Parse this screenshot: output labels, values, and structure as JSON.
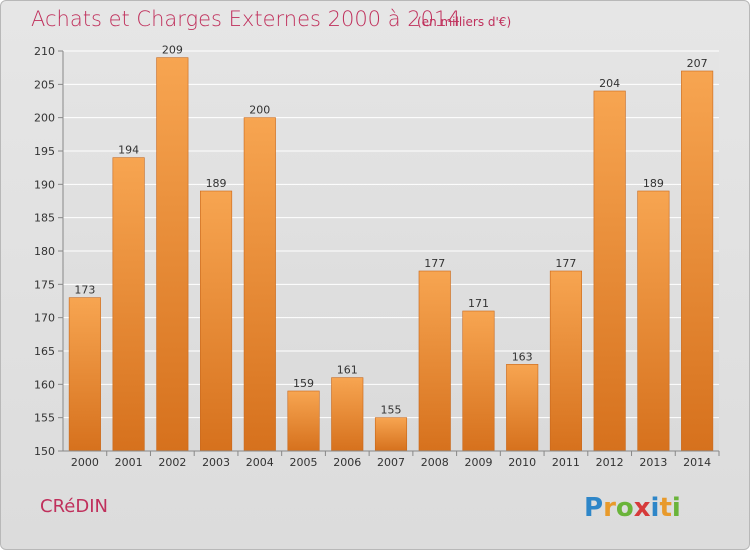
{
  "header": {
    "title": "Achats et Charges Externes 2000 à 2014",
    "subtitle": "(en milliers d'€)"
  },
  "footer": {
    "commune": "CRéDIN",
    "logo_text": "Proxiti"
  },
  "colors": {
    "accent": "#c0305c",
    "bar_light": "#f6a24e",
    "bar_dark": "#d8731f",
    "background": "#e0e0e0"
  },
  "chart_data": {
    "type": "bar",
    "title": "Achats et Charges Externes 2000 à 2014",
    "subtitle": "(en milliers d'€)",
    "categories": [
      "2000",
      "2001",
      "2002",
      "2003",
      "2004",
      "2005",
      "2006",
      "2007",
      "2008",
      "2009",
      "2010",
      "2011",
      "2012",
      "2013",
      "2014"
    ],
    "values": [
      173,
      194,
      209,
      189,
      200,
      159,
      161,
      155,
      177,
      171,
      163,
      177,
      204,
      189,
      207
    ],
    "ylim": [
      150,
      210
    ],
    "yticks": [
      150,
      155,
      160,
      165,
      170,
      175,
      180,
      185,
      190,
      195,
      200,
      205,
      210
    ],
    "grid": true,
    "data_labels": true
  }
}
